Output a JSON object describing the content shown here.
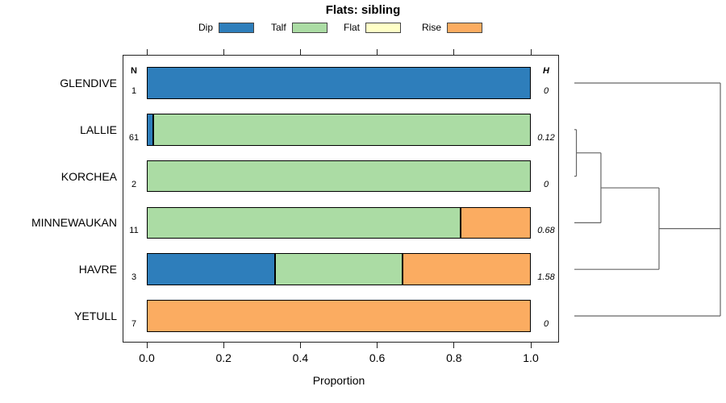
{
  "chart_data": {
    "type": "bar",
    "orientation": "horizontal",
    "stacked": true,
    "title": "Flats: sibling",
    "xlabel": "Proportion",
    "xlim": [
      0,
      1
    ],
    "grid": false,
    "legend_position": "top",
    "xticks": {
      "values": [
        0,
        0.2,
        0.4,
        0.6,
        0.8,
        1.0
      ],
      "labels": [
        "0.0",
        "0.2",
        "0.4",
        "0.6",
        "0.8",
        "1.0"
      ]
    },
    "categories": [
      "GLENDIVE",
      "LALLIE",
      "KORCHEA",
      "MINNEWAUKAN",
      "HAVRE",
      "YETULL"
    ],
    "n_column": {
      "header": "N",
      "values": [
        "1",
        "61",
        "2",
        "11",
        "3",
        "7"
      ]
    },
    "h_column": {
      "header": "H",
      "values": [
        "0",
        "0.12",
        "0",
        "0.68",
        "1.58",
        "0"
      ]
    },
    "series": [
      {
        "name": "Dip",
        "color": "#2E7EBB",
        "values": [
          1,
          0.016,
          0,
          0,
          0.333,
          0
        ]
      },
      {
        "name": "Talf",
        "color": "#ABDCA4",
        "values": [
          0,
          0.984,
          1,
          0.818,
          0.334,
          0
        ]
      },
      {
        "name": "Flat",
        "color": "#FFFFC7",
        "values": [
          0,
          0,
          0,
          0,
          0,
          0
        ]
      },
      {
        "name": "Rise",
        "color": "#FBAC61",
        "values": [
          0,
          0,
          0,
          0.182,
          0.333,
          1
        ]
      }
    ],
    "dendrogram": {
      "position": "right",
      "segments": [
        {
          "x1": 0,
          "y1": 0,
          "x2": 1,
          "y2": 0
        },
        {
          "x1": 0,
          "y1": 1,
          "x2": 0.014,
          "y2": 1
        },
        {
          "x1": 0,
          "y1": 2,
          "x2": 0.014,
          "y2": 2
        },
        {
          "x1": 0.014,
          "y1": 1,
          "x2": 0.014,
          "y2": 2
        },
        {
          "x1": 0.014,
          "y1": 1.5,
          "x2": 0.182,
          "y2": 1.5
        },
        {
          "x1": 0,
          "y1": 3,
          "x2": 0.182,
          "y2": 3
        },
        {
          "x1": 0.182,
          "y1": 1.5,
          "x2": 0.182,
          "y2": 3
        },
        {
          "x1": 0.182,
          "y1": 2.25,
          "x2": 0.58,
          "y2": 2.25
        },
        {
          "x1": 0,
          "y1": 4,
          "x2": 0.58,
          "y2": 4
        },
        {
          "x1": 0.58,
          "y1": 2.25,
          "x2": 0.58,
          "y2": 4
        },
        {
          "x1": 0.58,
          "y1": 3.125,
          "x2": 1,
          "y2": 3.125
        },
        {
          "x1": 0,
          "y1": 5,
          "x2": 1,
          "y2": 5
        },
        {
          "x1": 1,
          "y1": 0,
          "x2": 1,
          "y2": 5
        }
      ]
    }
  },
  "colors": {
    "bar_border": "#000000",
    "axis": "#222222",
    "dendrogram_line": "#666666",
    "text": "#000000",
    "legend_swatch_border": "#444444"
  }
}
